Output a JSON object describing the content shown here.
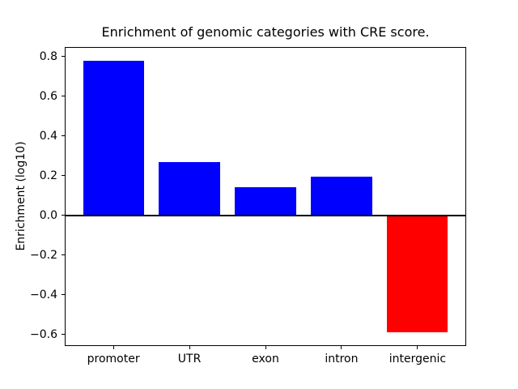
{
  "title": "Enrichment of genomic categories with CRE score.",
  "chart_data": {
    "type": "bar",
    "title": "Enrichment of genomic categories with CRE score.",
    "xlabel": "",
    "ylabel": "Enrichment (log10)",
    "categories": [
      "promoter",
      "UTR",
      "exon",
      "intron",
      "intergenic"
    ],
    "values": [
      0.78,
      0.27,
      0.14,
      0.195,
      -0.59
    ],
    "bar_colors": [
      "#0000ff",
      "#0000ff",
      "#0000ff",
      "#0000ff",
      "#ff0000"
    ],
    "positive_color": "#0000ff",
    "negative_color": "#ff0000",
    "ylim": [
      -0.6585,
      0.8485
    ],
    "yticks": [
      {
        "value": -0.6,
        "label": "−0.6"
      },
      {
        "value": -0.4,
        "label": "−0.4"
      },
      {
        "value": -0.2,
        "label": "−0.2"
      },
      {
        "value": 0.0,
        "label": "0.0"
      },
      {
        "value": 0.2,
        "label": "0.2"
      },
      {
        "value": 0.4,
        "label": "0.4"
      },
      {
        "value": 0.6,
        "label": "0.6"
      },
      {
        "value": 0.8,
        "label": "0.8"
      }
    ],
    "zero_line": true,
    "grid": false,
    "legend": "none"
  }
}
